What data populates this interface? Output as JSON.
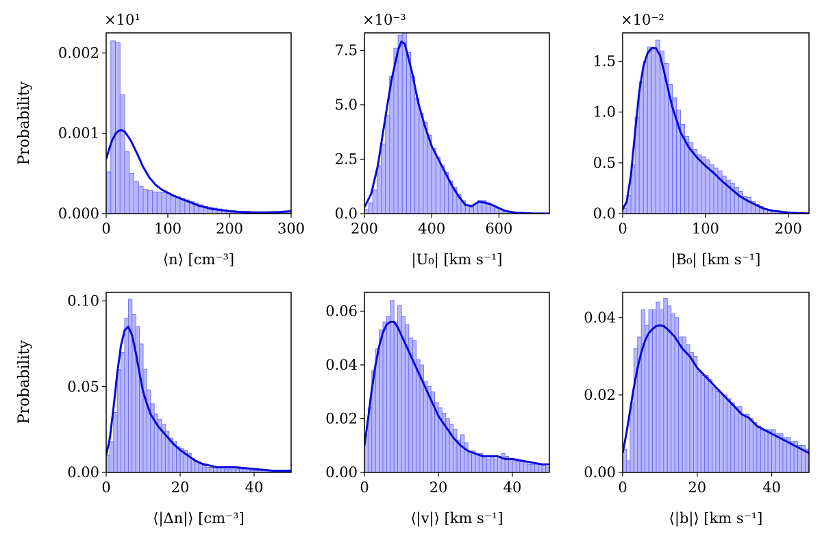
{
  "colors": {
    "bar_fill": "#aaaaff",
    "bar_edge": "#6a6af0",
    "kde": "#0a0adc"
  },
  "ylabels": {
    "top": "Probability",
    "bottom": "Probability"
  },
  "chart_data": [
    {
      "type": "bar",
      "title": "",
      "xlabel": "⟨n⟩ [cm⁻³]",
      "ylabel": "Probability",
      "offset": "×10¹",
      "xlim": [
        0,
        300
      ],
      "ylim": [
        0,
        0.00225
      ],
      "xticks": [
        0,
        100,
        200,
        300
      ],
      "yticks": [
        0.0,
        0.001,
        0.002
      ],
      "ytick_labels": [
        "0.000",
        "0.001",
        "0.002"
      ],
      "bin_width": 7.5,
      "bin_start": 0,
      "values": [
        0.00052,
        0.00215,
        0.00213,
        0.00148,
        0.00077,
        0.0005,
        0.0004,
        0.00034,
        0.0003,
        0.00029,
        0.00027,
        0.00027,
        0.00026,
        0.00025,
        0.00023,
        0.00021,
        0.00019,
        0.00017,
        0.00015,
        0.00013,
        0.00011,
        9e-05,
        8e-05,
        7e-05,
        6e-05,
        5e-05,
        4e-05,
        4e-05,
        3e-05,
        3e-05,
        3e-05,
        2e-05,
        2e-05,
        2e-05,
        2e-05,
        2e-05,
        2e-05,
        2e-05,
        2e-05,
        2e-05
      ],
      "kde_x": [
        0,
        5,
        10,
        15,
        20,
        25,
        30,
        40,
        50,
        60,
        70,
        80,
        90,
        100,
        110,
        120,
        130,
        140,
        150,
        160,
        170,
        180,
        190,
        200,
        220,
        240,
        260,
        280,
        300
      ],
      "kde_y": [
        0.00068,
        0.00081,
        0.00092,
        0.00099,
        0.00103,
        0.00104,
        0.00102,
        0.00091,
        0.00075,
        0.00058,
        0.00045,
        0.00036,
        0.0003,
        0.00026,
        0.00022,
        0.00019,
        0.00016,
        0.00013,
        0.0001,
        8e-05,
        6e-05,
        5e-05,
        4e-05,
        3e-05,
        2e-05,
        1.5e-05,
        1.5e-05,
        2e-05,
        3e-05
      ]
    },
    {
      "type": "bar",
      "title": "",
      "xlabel": "|U₀| [km s⁻¹]",
      "ylabel": "",
      "offset": "×10⁻³",
      "xlim": [
        200,
        750
      ],
      "ylim": [
        0,
        8.3
      ],
      "xticks": [
        200,
        400,
        600
      ],
      "yticks": [
        0.0,
        2.5,
        5.0,
        7.5
      ],
      "ytick_labels": [
        "0.0",
        "2.5",
        "5.0",
        "7.5"
      ],
      "bin_width": 12.5,
      "bin_start": 200,
      "values": [
        0.2,
        0.5,
        1.1,
        2.2,
        3.2,
        4.5,
        6.3,
        7.6,
        8.2,
        8.3,
        7.4,
        6.3,
        5.3,
        4.6,
        4.2,
        3.6,
        3.0,
        2.6,
        2.2,
        1.9,
        1.5,
        1.2,
        0.9,
        0.6,
        0.4,
        0.3,
        0.4,
        0.6,
        0.6,
        0.5,
        0.4,
        0.3,
        0.2,
        0.1,
        0.1,
        0.05,
        0.03,
        0.02,
        0.02,
        0.01,
        0.01,
        0.01,
        0.01,
        0.01
      ],
      "kde_x": [
        200,
        220,
        240,
        260,
        280,
        300,
        310,
        320,
        340,
        360,
        380,
        400,
        420,
        440,
        460,
        480,
        500,
        520,
        540,
        560,
        580,
        600,
        620,
        650,
        700,
        750
      ],
      "kde_y": [
        0.3,
        0.9,
        2.2,
        4.2,
        6.1,
        7.5,
        7.9,
        7.8,
        6.6,
        5.1,
        4.0,
        3.1,
        2.5,
        1.9,
        1.3,
        0.8,
        0.4,
        0.35,
        0.55,
        0.5,
        0.4,
        0.25,
        0.12,
        0.04,
        0.01,
        0.0
      ]
    },
    {
      "type": "bar",
      "title": "",
      "xlabel": "|B₀| [km s⁻¹]",
      "ylabel": "",
      "offset": "×10⁻²",
      "xlim": [
        0,
        225
      ],
      "ylim": [
        0,
        1.78
      ],
      "xticks": [
        0,
        100,
        200
      ],
      "yticks": [
        0.0,
        0.5,
        1.0,
        1.5
      ],
      "ytick_labels": [
        "0.0",
        "0.5",
        "1.0",
        "1.5"
      ],
      "bin_width": 5,
      "bin_start": 0,
      "values": [
        0.05,
        0.18,
        0.48,
        0.95,
        1.3,
        1.5,
        1.64,
        1.63,
        1.71,
        1.6,
        1.48,
        1.27,
        1.14,
        1.02,
        0.88,
        0.76,
        0.7,
        0.63,
        0.58,
        0.56,
        0.53,
        0.48,
        0.45,
        0.42,
        0.37,
        0.33,
        0.3,
        0.26,
        0.22,
        0.17,
        0.16,
        0.12,
        0.09,
        0.07,
        0.05,
        0.04,
        0.03,
        0.02,
        0.02,
        0.01,
        0.01,
        0.01,
        0.01,
        0.01,
        0.01
      ],
      "kde_x": [
        0,
        5,
        10,
        15,
        20,
        25,
        30,
        35,
        40,
        45,
        50,
        55,
        60,
        70,
        80,
        90,
        100,
        110,
        120,
        130,
        140,
        150,
        160,
        170,
        180,
        200,
        225
      ],
      "kde_y": [
        0.04,
        0.12,
        0.38,
        0.8,
        1.2,
        1.45,
        1.58,
        1.63,
        1.63,
        1.56,
        1.4,
        1.22,
        1.05,
        0.8,
        0.65,
        0.55,
        0.47,
        0.4,
        0.32,
        0.25,
        0.18,
        0.13,
        0.09,
        0.05,
        0.03,
        0.01,
        0.0
      ]
    },
    {
      "type": "bar",
      "title": "",
      "xlabel": "⟨|Δn|⟩ [cm⁻³]",
      "ylabel": "Probability",
      "offset": "",
      "xlim": [
        0,
        50
      ],
      "ylim": [
        0,
        0.105
      ],
      "xticks": [
        0,
        20,
        40
      ],
      "yticks": [
        0.0,
        0.05,
        0.1
      ],
      "ytick_labels": [
        "0.00",
        "0.05",
        "0.10"
      ],
      "bin_width": 1,
      "bin_start": 0,
      "values": [
        0.01,
        0.018,
        0.035,
        0.06,
        0.07,
        0.09,
        0.101,
        0.092,
        0.085,
        0.075,
        0.06,
        0.048,
        0.04,
        0.034,
        0.031,
        0.028,
        0.024,
        0.02,
        0.018,
        0.015,
        0.014,
        0.013,
        0.011,
        0.008,
        0.006,
        0.005,
        0.004,
        0.003,
        0.003,
        0.003,
        0.003,
        0.003,
        0.002,
        0.002,
        0.002,
        0.002,
        0.002,
        0.002,
        0.002,
        0.001,
        0.001,
        0.001,
        0.001,
        0.001,
        0.001,
        0.001,
        0.001,
        0.001,
        0.001,
        0.001
      ],
      "kde_x": [
        0,
        1,
        2,
        3,
        4,
        5,
        6,
        7,
        8,
        9,
        10,
        11,
        12,
        14,
        16,
        18,
        20,
        22,
        24,
        26,
        28,
        30,
        35,
        40,
        45,
        50
      ],
      "kde_y": [
        0.01,
        0.02,
        0.038,
        0.058,
        0.074,
        0.083,
        0.085,
        0.08,
        0.07,
        0.058,
        0.047,
        0.04,
        0.034,
        0.027,
        0.022,
        0.017,
        0.013,
        0.01,
        0.007,
        0.005,
        0.004,
        0.003,
        0.003,
        0.002,
        0.001,
        0.001
      ]
    },
    {
      "type": "bar",
      "title": "",
      "xlabel": "⟨|v|⟩ [km s⁻¹]",
      "ylabel": "",
      "offset": "",
      "xlim": [
        0,
        50
      ],
      "ylim": [
        0,
        0.067
      ],
      "xticks": [
        0,
        20,
        40
      ],
      "yticks": [
        0.0,
        0.02,
        0.04,
        0.06
      ],
      "ytick_labels": [
        "0.00",
        "0.02",
        "0.04",
        "0.06"
      ],
      "bin_width": 1,
      "bin_start": 0,
      "values": [
        0.014,
        0.024,
        0.038,
        0.046,
        0.053,
        0.056,
        0.058,
        0.064,
        0.056,
        0.062,
        0.058,
        0.055,
        0.05,
        0.049,
        0.042,
        0.04,
        0.034,
        0.032,
        0.03,
        0.026,
        0.024,
        0.022,
        0.02,
        0.018,
        0.016,
        0.012,
        0.014,
        0.011,
        0.008,
        0.008,
        0.007,
        0.007,
        0.006,
        0.005,
        0.006,
        0.005,
        0.006,
        0.007,
        0.006,
        0.005,
        0.005,
        0.004,
        0.004,
        0.004,
        0.003,
        0.003,
        0.003,
        0.003,
        0.003,
        0.002
      ],
      "kde_x": [
        0,
        1,
        2,
        3,
        4,
        5,
        6,
        7,
        8,
        9,
        10,
        12,
        14,
        16,
        18,
        20,
        22,
        24,
        26,
        28,
        30,
        32,
        34,
        36,
        38,
        40,
        44,
        48,
        50
      ],
      "kde_y": [
        0.01,
        0.02,
        0.031,
        0.04,
        0.047,
        0.052,
        0.055,
        0.056,
        0.056,
        0.054,
        0.051,
        0.045,
        0.039,
        0.033,
        0.027,
        0.021,
        0.017,
        0.013,
        0.01,
        0.008,
        0.007,
        0.006,
        0.006,
        0.006,
        0.005,
        0.005,
        0.004,
        0.003,
        0.003
      ]
    },
    {
      "type": "bar",
      "title": "",
      "xlabel": "⟨|b|⟩ [km s⁻¹]",
      "ylabel": "",
      "offset": "",
      "xlim": [
        0,
        50
      ],
      "ylim": [
        0,
        0.0465
      ],
      "xticks": [
        0,
        20,
        40
      ],
      "yticks": [
        0.0,
        0.02,
        0.04
      ],
      "ytick_labels": [
        "0.00",
        "0.02",
        "0.04"
      ],
      "bin_width": 1,
      "bin_start": 0,
      "values": [
        0.006,
        0.003,
        0.018,
        0.032,
        0.035,
        0.042,
        0.038,
        0.042,
        0.042,
        0.044,
        0.042,
        0.045,
        0.043,
        0.041,
        0.04,
        0.035,
        0.035,
        0.033,
        0.031,
        0.03,
        0.026,
        0.025,
        0.025,
        0.024,
        0.022,
        0.021,
        0.02,
        0.02,
        0.019,
        0.018,
        0.017,
        0.017,
        0.015,
        0.015,
        0.014,
        0.013,
        0.012,
        0.011,
        0.011,
        0.011,
        0.011,
        0.01,
        0.01,
        0.009,
        0.009,
        0.008,
        0.008,
        0.007,
        0.007,
        0.006
      ],
      "kde_x": [
        0,
        1,
        2,
        3,
        4,
        5,
        6,
        7,
        8,
        9,
        10,
        11,
        12,
        14,
        16,
        18,
        20,
        22,
        24,
        26,
        28,
        30,
        32,
        34,
        36,
        38,
        40,
        44,
        48,
        50
      ],
      "kde_y": [
        0.005,
        0.01,
        0.016,
        0.022,
        0.027,
        0.031,
        0.034,
        0.036,
        0.037,
        0.0378,
        0.038,
        0.0378,
        0.037,
        0.035,
        0.032,
        0.03,
        0.027,
        0.025,
        0.023,
        0.021,
        0.019,
        0.017,
        0.015,
        0.014,
        0.012,
        0.011,
        0.01,
        0.008,
        0.006,
        0.005
      ]
    }
  ]
}
